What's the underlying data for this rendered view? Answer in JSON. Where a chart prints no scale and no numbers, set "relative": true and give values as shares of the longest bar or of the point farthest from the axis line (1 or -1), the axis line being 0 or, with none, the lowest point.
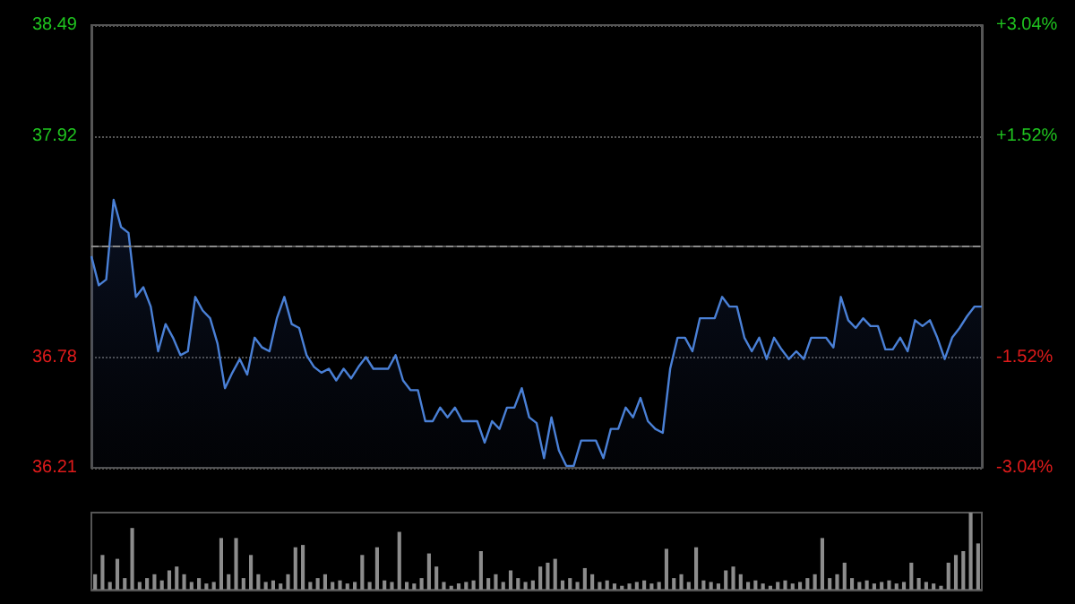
{
  "chart_data": [
    {
      "type": "area",
      "categories": [
        null,
        null,
        null,
        null,
        null,
        null,
        null,
        null,
        null,
        null,
        null,
        null,
        null,
        null,
        null,
        null,
        null,
        null,
        null,
        null,
        null,
        null,
        null,
        null,
        null,
        null,
        null,
        null,
        null,
        null,
        null,
        null,
        null,
        null,
        null,
        null,
        null,
        null,
        null,
        null,
        null,
        null,
        null,
        null,
        null,
        null,
        null,
        null,
        null,
        null,
        null,
        null,
        null,
        null,
        null,
        null,
        null,
        null,
        null,
        null,
        null,
        null,
        null,
        null,
        null,
        null,
        null,
        null,
        null,
        null,
        null,
        null,
        null,
        null,
        null,
        null,
        null,
        null,
        null,
        null,
        null,
        null,
        null,
        null,
        null,
        null,
        null,
        null,
        null,
        null,
        null,
        null,
        null,
        null,
        null,
        null,
        null,
        null,
        null,
        null,
        null,
        null,
        null,
        null,
        null,
        null,
        null,
        null,
        null,
        null,
        null,
        null,
        null,
        null,
        null,
        null,
        null,
        null,
        null,
        null,
        null
      ],
      "series": [
        {
          "color": "#4a80d6",
          "values": [
            37.3,
            37.15,
            37.18,
            37.59,
            37.45,
            37.42,
            37.09,
            37.14,
            37.04,
            36.81,
            36.95,
            36.88,
            36.79,
            36.81,
            37.09,
            37.02,
            36.98,
            36.85,
            36.62,
            36.7,
            36.77,
            36.69,
            36.88,
            36.83,
            36.81,
            36.98,
            37.09,
            36.95,
            36.93,
            36.79,
            36.73,
            36.7,
            36.72,
            36.66,
            36.72,
            36.67,
            36.73,
            36.78,
            36.72,
            36.72,
            36.72,
            36.79,
            36.66,
            36.61,
            36.61,
            36.45,
            36.45,
            36.52,
            36.47,
            36.52,
            36.45,
            36.45,
            36.45,
            36.34,
            36.45,
            36.41,
            36.52,
            36.52,
            36.62,
            36.47,
            36.44,
            36.26,
            36.47,
            36.3,
            36.22,
            36.22,
            36.35,
            36.35,
            36.35,
            36.26,
            36.41,
            36.41,
            36.52,
            36.47,
            36.57,
            36.45,
            36.41,
            36.39,
            36.72,
            36.88,
            36.88,
            36.81,
            36.98,
            36.98,
            36.98,
            37.09,
            37.04,
            37.04,
            36.88,
            36.81,
            36.88,
            36.77,
            36.88,
            36.82,
            36.77,
            36.81,
            36.77,
            36.88,
            36.88,
            36.88,
            36.83,
            37.09,
            36.97,
            36.93,
            36.98,
            36.94,
            36.94,
            36.82,
            36.82,
            36.88,
            36.81,
            36.97,
            36.94,
            36.97,
            36.88,
            36.77,
            36.88,
            36.93,
            36.99,
            37.04,
            37.04
          ]
        }
      ],
      "ylim": [
        36.21,
        38.49
      ],
      "yticks": [
        36.21,
        36.78,
        37.92,
        38.49
      ],
      "y2lim": [
        -3.04,
        3.04
      ],
      "y2ticks": [
        {
          "value": -3.04,
          "label": "-3.04%"
        },
        {
          "value": -1.52,
          "label": "-1.52%"
        },
        {
          "value": 1.52,
          "label": "+1.52%"
        },
        {
          "value": 3.04,
          "label": "+3.04%"
        }
      ],
      "ref_lines": [
        {
          "axis": "y",
          "value": 37.35,
          "line_style": "dashed",
          "color": "#8a8a8a"
        }
      ],
      "grid": "y",
      "tick_labels": "y"
    },
    {
      "type": "bar",
      "relative": true,
      "categories": [
        null,
        null,
        null,
        null,
        null,
        null,
        null,
        null,
        null,
        null,
        null,
        null,
        null,
        null,
        null,
        null,
        null,
        null,
        null,
        null,
        null,
        null,
        null,
        null,
        null,
        null,
        null,
        null,
        null,
        null,
        null,
        null,
        null,
        null,
        null,
        null,
        null,
        null,
        null,
        null,
        null,
        null,
        null,
        null,
        null,
        null,
        null,
        null,
        null,
        null,
        null,
        null,
        null,
        null,
        null,
        null,
        null,
        null,
        null,
        null,
        null,
        null,
        null,
        null,
        null,
        null,
        null,
        null,
        null,
        null,
        null,
        null,
        null,
        null,
        null,
        null,
        null,
        null,
        null,
        null,
        null,
        null,
        null,
        null,
        null,
        null,
        null,
        null,
        null,
        null,
        null,
        null,
        null,
        null,
        null,
        null,
        null,
        null,
        null,
        null,
        null,
        null,
        null,
        null,
        null,
        null,
        null,
        null,
        null,
        null,
        null,
        null,
        null,
        null,
        null,
        null,
        null,
        null,
        null,
        null
      ],
      "color": "#8c8c8c",
      "values": [
        0.2,
        0.45,
        0.1,
        0.4,
        0.15,
        0.8,
        0.1,
        0.15,
        0.2,
        0.12,
        0.25,
        0.3,
        0.2,
        0.1,
        0.15,
        0.08,
        0.1,
        0.67,
        0.2,
        0.67,
        0.15,
        0.45,
        0.2,
        0.1,
        0.12,
        0.08,
        0.2,
        0.55,
        0.58,
        0.1,
        0.15,
        0.2,
        0.1,
        0.12,
        0.08,
        0.1,
        0.45,
        0.1,
        0.55,
        0.12,
        0.1,
        0.75,
        0.1,
        0.08,
        0.15,
        0.47,
        0.3,
        0.1,
        0.05,
        0.08,
        0.1,
        0.12,
        0.5,
        0.15,
        0.2,
        0.1,
        0.25,
        0.15,
        0.1,
        0.12,
        0.3,
        0.35,
        0.4,
        0.12,
        0.15,
        0.1,
        0.28,
        0.2,
        0.1,
        0.12,
        0.08,
        0.05,
        0.08,
        0.1,
        0.12,
        0.08,
        0.1,
        0.53,
        0.15,
        0.2,
        0.1,
        0.55,
        0.12,
        0.1,
        0.08,
        0.25,
        0.3,
        0.2,
        0.1,
        0.12,
        0.08,
        0.05,
        0.1,
        0.12,
        0.08,
        0.1,
        0.15,
        0.2,
        0.67,
        0.15,
        0.2,
        0.35,
        0.15,
        0.1,
        0.12,
        0.08,
        0.1,
        0.12,
        0.08,
        0.1,
        0.35,
        0.15,
        0.1,
        0.08,
        0.05,
        0.35,
        0.45,
        0.5,
        1,
        0.6
      ]
    }
  ]
}
